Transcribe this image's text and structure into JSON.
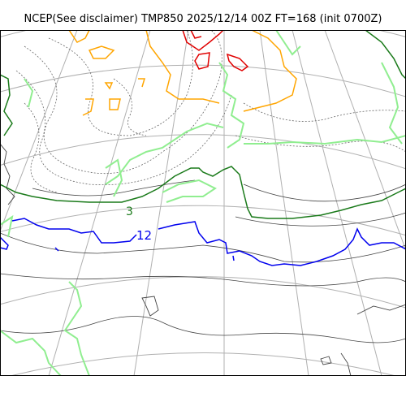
{
  "title": "NCEP(See disclaimer) TMP850 2025/12/14 00Z FT=168 (init 0700Z)",
  "colors": {
    "coastline": "#444444",
    "graticule": "#b0b0b0",
    "isotherm_3": "#1a7a1a",
    "isotherm_12": "#0000ee",
    "warm_orange": "#ffa500",
    "hot_red": "#e00000",
    "light_green": "#90ee90",
    "dotted_gray": "#666666",
    "frame": "#000000"
  },
  "contour_labels": [
    {
      "text": "3",
      "color_key": "isotherm_3"
    },
    {
      "text": "12",
      "color_key": "isotherm_12"
    }
  ]
}
